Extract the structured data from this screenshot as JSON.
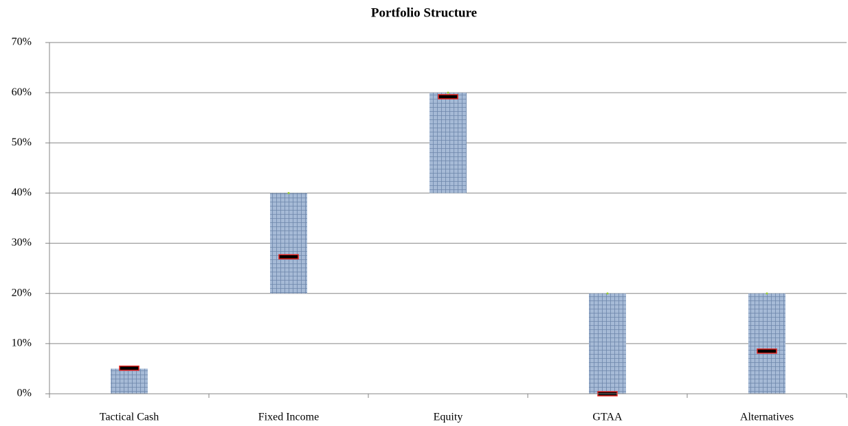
{
  "chart_data": {
    "type": "floating_bar",
    "title": "Portfolio Structure",
    "categories": [
      "Tactical Cash",
      "Fixed Income",
      "Equity",
      "GTAA",
      "Alternatives"
    ],
    "low": [
      0,
      20,
      40,
      0,
      0
    ],
    "high": [
      5,
      40,
      60,
      20,
      20
    ],
    "actual": [
      5.1,
      27.3,
      59.2,
      0,
      8.5
    ],
    "color": "#9cb3d1",
    "marker_color": "#000000",
    "marker_edge": "#e0201b",
    "ylim": [
      0,
      70
    ],
    "yticks": [
      {
        "value": 0,
        "label": "0%"
      },
      {
        "value": 10,
        "label": "10%"
      },
      {
        "value": 20,
        "label": "20%"
      },
      {
        "value": 30,
        "label": "30%"
      },
      {
        "value": 40,
        "label": "40%"
      },
      {
        "value": 50,
        "label": "50%"
      },
      {
        "value": 60,
        "label": "60%"
      },
      {
        "value": 70,
        "label": "70%"
      }
    ],
    "grid": true
  }
}
